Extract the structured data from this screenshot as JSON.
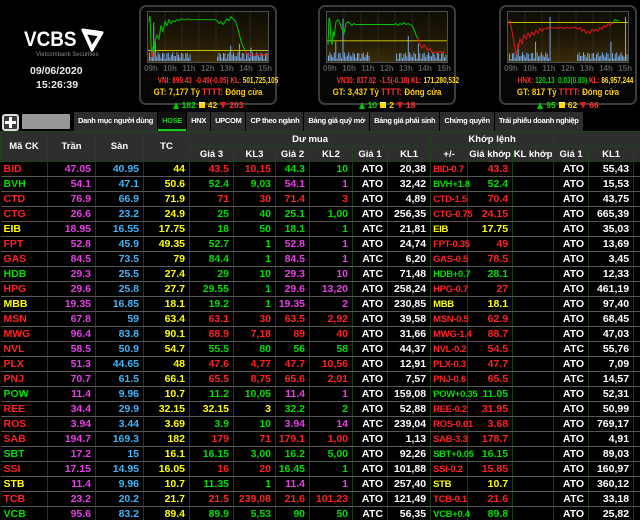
{
  "header": {
    "brand": "VCBS",
    "tagline": "Vietcombank Securities",
    "date": "09/06/2020",
    "time": "15:26:39"
  },
  "panel_labels": {
    "kl": "KL:",
    "gt": "GT:",
    "tttt": "TTTT:"
  },
  "time_axis": [
    "09h",
    "10h",
    "11h",
    "12h",
    "13h",
    "14h",
    "15h"
  ],
  "panels": [
    {
      "name": "VNI",
      "value": "899.43",
      "change": "-0.49(-0.05)",
      "dir": "down",
      "kl": "501,725,105",
      "gt": "7,177 Tỷ",
      "status": "Đóng cửa",
      "advance": "182",
      "unchanged": "42",
      "decline": "203"
    },
    {
      "name": "VN30",
      "value": "837.02",
      "change": "-1.5(-0.18)",
      "dir": "down",
      "kl": "171,280,532",
      "gt": "3,437 Tỷ",
      "status": "Đóng cửa",
      "advance": "10",
      "unchanged": "2",
      "decline": "18"
    },
    {
      "name": "HNX",
      "value": "120.13",
      "change": "0.03(0.03)",
      "dir": "up",
      "kl": "86,957,244",
      "gt": "817 Tỷ",
      "status": "Đóng cửa",
      "advance": "95",
      "unchanged": "62",
      "decline": "66"
    }
  ],
  "tabs": [
    {
      "label": "Danh mục người dùng",
      "active": false
    },
    {
      "label": "HOSE",
      "active": true
    },
    {
      "label": "HNX",
      "active": false
    },
    {
      "label": "UPCOM",
      "active": false
    },
    {
      "label": "CP theo ngành",
      "active": false
    },
    {
      "label": "Bảng giá quỹ mở",
      "active": false
    },
    {
      "label": "Bảng giá phái sinh",
      "active": false
    },
    {
      "label": "Chứng quyền",
      "active": false
    },
    {
      "label": "Trái phiếu doanh nghiệp",
      "active": false
    }
  ],
  "table": {
    "headers": {
      "symbol": "Mã CK",
      "ceiling": "Trần",
      "floor": "Sàn",
      "reference": "TC",
      "buy_group": "Dư mua",
      "match_group": "Khớp lệnh",
      "sell_group": "",
      "price3": "Giá 3",
      "vol3": "KL3",
      "price2": "Giá 2",
      "vol2": "KL2",
      "price1": "Giá 1",
      "vol1": "KL1",
      "change": "+/-",
      "match_price": "Giá khớp",
      "match_vol": "KL khớp",
      "sell_price1": "Giá 1",
      "sell_vol1": "KL1"
    },
    "rows": [
      {
        "s": "BID",
        "c": "d",
        "tr": "47.05",
        "sa": "40.95",
        "tc": "44",
        "b": [
          [
            "43.5",
            "d"
          ],
          [
            "10,15",
            "d"
          ],
          [
            "44.3",
            "u"
          ],
          [
            "10",
            "u"
          ]
        ],
        "g1": "ATO",
        "kl1": "20,38",
        "pm": "BID-0.7",
        "gk": "43.3",
        "klk": "",
        "a1": "ATO",
        "akl": "55,43"
      },
      {
        "s": "BVH",
        "c": "u",
        "tr": "54.1",
        "sa": "47.1",
        "tc": "50.6",
        "b": [
          [
            "52.4",
            "u"
          ],
          [
            "9,03",
            "u"
          ],
          [
            "54.1",
            "m"
          ],
          [
            "1",
            "m"
          ]
        ],
        "g1": "ATO",
        "kl1": "32,42",
        "pm": "BVH+1.8",
        "gk": "52.4",
        "klk": "",
        "a1": "ATO",
        "akl": "15,53"
      },
      {
        "s": "CTD",
        "c": "d",
        "tr": "76.9",
        "sa": "66.9",
        "tc": "71.9",
        "b": [
          [
            "71",
            "d"
          ],
          [
            "30",
            "d"
          ],
          [
            "71.4",
            "d"
          ],
          [
            "3",
            "d"
          ]
        ],
        "g1": "ATO",
        "kl1": "4,89",
        "pm": "CTD-1.5",
        "gk": "70.4",
        "klk": "",
        "a1": "ATO",
        "akl": "43,75"
      },
      {
        "s": "CTG",
        "c": "d",
        "tr": "26.6",
        "sa": "23.2",
        "tc": "24.9",
        "b": [
          [
            "25",
            "u"
          ],
          [
            "40",
            "u"
          ],
          [
            "25.1",
            "u"
          ],
          [
            "1,00",
            "u"
          ]
        ],
        "g1": "ATO",
        "kl1": "256,35",
        "pm": "CTG-0.75",
        "gk": "24.15",
        "klk": "",
        "a1": "ATO",
        "akl": "665,39"
      },
      {
        "s": "EIB",
        "c": "y",
        "tr": "18.95",
        "sa": "16.55",
        "tc": "17.75",
        "b": [
          [
            "18",
            "u"
          ],
          [
            "50",
            "u"
          ],
          [
            "18.1",
            "u"
          ],
          [
            "1",
            "u"
          ]
        ],
        "g1": "ATC",
        "kl1": "21,81",
        "pm": "EIB",
        "gk": "17.75",
        "klk": "",
        "a1": "ATO",
        "akl": "35,03"
      },
      {
        "s": "FPT",
        "c": "d",
        "tr": "52.8",
        "sa": "45.9",
        "tc": "49.35",
        "b": [
          [
            "52.7",
            "u"
          ],
          [
            "1",
            "u"
          ],
          [
            "52.8",
            "m"
          ],
          [
            "1",
            "m"
          ]
        ],
        "g1": "ATO",
        "kl1": "24,74",
        "pm": "FPT-0.35",
        "gk": "49",
        "klk": "",
        "a1": "ATO",
        "akl": "13,69"
      },
      {
        "s": "GAS",
        "c": "d",
        "tr": "84.5",
        "sa": "73.5",
        "tc": "79",
        "b": [
          [
            "84.4",
            "u"
          ],
          [
            "1",
            "u"
          ],
          [
            "84.5",
            "m"
          ],
          [
            "1",
            "m"
          ]
        ],
        "g1": "ATC",
        "kl1": "6,20",
        "pm": "GAS-0.5",
        "gk": "78.5",
        "klk": "",
        "a1": "ATO",
        "akl": "3,45"
      },
      {
        "s": "HDB",
        "c": "u",
        "tr": "29.3",
        "sa": "25.5",
        "tc": "27.4",
        "b": [
          [
            "29",
            "u"
          ],
          [
            "10",
            "u"
          ],
          [
            "29.3",
            "m"
          ],
          [
            "10",
            "m"
          ]
        ],
        "g1": "ATC",
        "kl1": "71,48",
        "pm": "HDB+0.7",
        "gk": "28.1",
        "klk": "",
        "a1": "ATO",
        "akl": "12,33"
      },
      {
        "s": "HPG",
        "c": "d",
        "tr": "29.6",
        "sa": "25.8",
        "tc": "27.7",
        "b": [
          [
            "29.55",
            "u"
          ],
          [
            "1",
            "u"
          ],
          [
            "29.6",
            "m"
          ],
          [
            "13,20",
            "m"
          ]
        ],
        "g1": "ATO",
        "kl1": "258,24",
        "pm": "HPG-0.7",
        "gk": "27",
        "klk": "",
        "a1": "ATO",
        "akl": "461,19"
      },
      {
        "s": "MBB",
        "c": "y",
        "tr": "19.35",
        "sa": "16.85",
        "tc": "18.1",
        "b": [
          [
            "19.2",
            "u"
          ],
          [
            "1",
            "u"
          ],
          [
            "19.35",
            "m"
          ],
          [
            "2",
            "m"
          ]
        ],
        "g1": "ATO",
        "kl1": "230,85",
        "pm": "MBB",
        "gk": "18.1",
        "klk": "",
        "a1": "ATO",
        "akl": "97,40"
      },
      {
        "s": "MSN",
        "c": "d",
        "tr": "67.8",
        "sa": "59",
        "tc": "63.4",
        "b": [
          [
            "63.1",
            "d"
          ],
          [
            "30",
            "d"
          ],
          [
            "63.5",
            "d"
          ],
          [
            "2,92",
            "d"
          ]
        ],
        "g1": "ATO",
        "kl1": "39,58",
        "pm": "MSN-0.5",
        "gk": "62.9",
        "klk": "",
        "a1": "ATO",
        "akl": "68,45"
      },
      {
        "s": "MWG",
        "c": "d",
        "tr": "96.4",
        "sa": "83.8",
        "tc": "90.1",
        "b": [
          [
            "88.9",
            "d"
          ],
          [
            "7,18",
            "d"
          ],
          [
            "89",
            "d"
          ],
          [
            "40",
            "d"
          ]
        ],
        "g1": "ATO",
        "kl1": "31,66",
        "pm": "MWG-1.4",
        "gk": "88.7",
        "klk": "",
        "a1": "ATO",
        "akl": "47,03"
      },
      {
        "s": "NVL",
        "c": "d",
        "tr": "58.5",
        "sa": "50.9",
        "tc": "54.7",
        "b": [
          [
            "55.5",
            "u"
          ],
          [
            "80",
            "u"
          ],
          [
            "56",
            "u"
          ],
          [
            "58",
            "u"
          ]
        ],
        "g1": "ATO",
        "kl1": "44,37",
        "pm": "NVL-0.2",
        "gk": "54.5",
        "klk": "",
        "a1": "ATC",
        "akl": "55,76"
      },
      {
        "s": "PLX",
        "c": "d",
        "tr": "51.3",
        "sa": "44.65",
        "tc": "48",
        "b": [
          [
            "47.6",
            "d"
          ],
          [
            "4,77",
            "d"
          ],
          [
            "47.7",
            "d"
          ],
          [
            "10,56",
            "d"
          ]
        ],
        "g1": "ATO",
        "kl1": "12,91",
        "pm": "PLX-0.3",
        "gk": "47.7",
        "klk": "",
        "a1": "ATO",
        "akl": "7,09"
      },
      {
        "s": "PNJ",
        "c": "d",
        "tr": "70.7",
        "sa": "61.5",
        "tc": "66.1",
        "b": [
          [
            "65.5",
            "d"
          ],
          [
            "8,75",
            "d"
          ],
          [
            "65.6",
            "d"
          ],
          [
            "2,01",
            "d"
          ]
        ],
        "g1": "ATO",
        "kl1": "7,57",
        "pm": "PNJ-0.6",
        "gk": "65.5",
        "klk": "",
        "a1": "ATC",
        "akl": "14,57"
      },
      {
        "s": "POW",
        "c": "u",
        "tr": "11.4",
        "sa": "9.96",
        "tc": "10.7",
        "b": [
          [
            "11.2",
            "u"
          ],
          [
            "10,05",
            "u"
          ],
          [
            "11.4",
            "m"
          ],
          [
            "1",
            "m"
          ]
        ],
        "g1": "ATO",
        "kl1": "159,08",
        "pm": "POW+0.35",
        "gk": "11.05",
        "klk": "",
        "a1": "ATO",
        "akl": "52,31"
      },
      {
        "s": "REE",
        "c": "d",
        "tr": "34.4",
        "sa": "29.9",
        "tc": "32.15",
        "b": [
          [
            "32.15",
            "y"
          ],
          [
            "3",
            "y"
          ],
          [
            "32.2",
            "u"
          ],
          [
            "2",
            "u"
          ]
        ],
        "g1": "ATO",
        "kl1": "52,88",
        "pm": "REE-0.2",
        "gk": "31.95",
        "klk": "",
        "a1": "ATO",
        "akl": "50,99"
      },
      {
        "s": "ROS",
        "c": "d",
        "tr": "3.94",
        "sa": "3.44",
        "tc": "3.69",
        "b": [
          [
            "3.9",
            "u"
          ],
          [
            "10",
            "u"
          ],
          [
            "3.94",
            "m"
          ],
          [
            "14",
            "m"
          ]
        ],
        "g1": "ATC",
        "kl1": "239,04",
        "pm": "ROS-0.01",
        "gk": "3.68",
        "klk": "",
        "a1": "ATO",
        "akl": "769,17"
      },
      {
        "s": "SAB",
        "c": "d",
        "tr": "194.7",
        "sa": "169.3",
        "tc": "182",
        "b": [
          [
            "179",
            "d"
          ],
          [
            "71",
            "d"
          ],
          [
            "179.1",
            "d"
          ],
          [
            "1,00",
            "d"
          ]
        ],
        "g1": "ATO",
        "kl1": "1,13",
        "pm": "SAB-3.3",
        "gk": "178.7",
        "klk": "",
        "a1": "ATO",
        "akl": "4,91"
      },
      {
        "s": "SBT",
        "c": "u",
        "tr": "17.2",
        "sa": "15",
        "tc": "16.1",
        "b": [
          [
            "16.15",
            "u"
          ],
          [
            "3,00",
            "u"
          ],
          [
            "16.2",
            "u"
          ],
          [
            "5,00",
            "u"
          ]
        ],
        "g1": "ATO",
        "kl1": "92,26",
        "pm": "SBT+0.05",
        "gk": "16.15",
        "klk": "",
        "a1": "ATO",
        "akl": "89,03"
      },
      {
        "s": "SSI",
        "c": "d",
        "tr": "17.15",
        "sa": "14.95",
        "tc": "16.05",
        "b": [
          [
            "16",
            "d"
          ],
          [
            "20",
            "d"
          ],
          [
            "16.45",
            "u"
          ],
          [
            "1",
            "u"
          ]
        ],
        "g1": "ATO",
        "kl1": "101,88",
        "pm": "SSI-0.2",
        "gk": "15.85",
        "klk": "",
        "a1": "ATO",
        "akl": "160,97"
      },
      {
        "s": "STB",
        "c": "y",
        "tr": "11.4",
        "sa": "9.96",
        "tc": "10.7",
        "b": [
          [
            "11.35",
            "u"
          ],
          [
            "1",
            "u"
          ],
          [
            "11.4",
            "m"
          ],
          [
            "1",
            "m"
          ]
        ],
        "g1": "ATO",
        "kl1": "257,40",
        "pm": "STB",
        "gk": "10.7",
        "klk": "",
        "a1": "ATO",
        "akl": "360,12"
      },
      {
        "s": "TCB",
        "c": "d",
        "tr": "23.2",
        "sa": "20.2",
        "tc": "21.7",
        "b": [
          [
            "21.5",
            "d"
          ],
          [
            "239,08",
            "d"
          ],
          [
            "21.6",
            "d"
          ],
          [
            "101,23",
            "d"
          ]
        ],
        "g1": "ATO",
        "kl1": "121,49",
        "pm": "TCB-0.1",
        "gk": "21.6",
        "klk": "",
        "a1": "ATC",
        "akl": "33,18"
      },
      {
        "s": "VCB",
        "c": "u",
        "tr": "95.6",
        "sa": "83.2",
        "tc": "89.4",
        "b": [
          [
            "89.9",
            "u"
          ],
          [
            "5,53",
            "u"
          ],
          [
            "90",
            "u"
          ],
          [
            "50",
            "u"
          ]
        ],
        "g1": "ATC",
        "kl1": "56,35",
        "pm": "VCB+0.4",
        "gk": "89.8",
        "klk": "",
        "a1": "ATO",
        "akl": "25,82"
      }
    ]
  }
}
